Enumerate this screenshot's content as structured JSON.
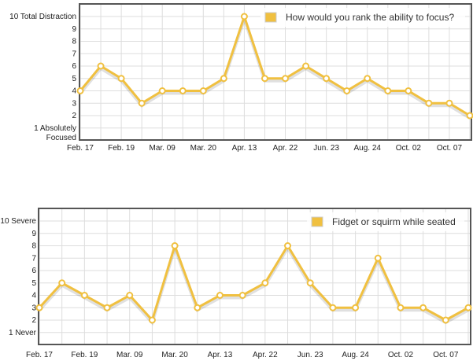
{
  "chart_data": [
    {
      "type": "line",
      "title": "",
      "legend": "How would you rank the ability to focus?",
      "legend_position": "top-right",
      "ytick_labels": {
        "10": "10 Total Distraction",
        "9": "9",
        "8": "8",
        "7": "7",
        "6": "6",
        "5": "5",
        "4": "4",
        "3": "3",
        "2": "2",
        "1": "1 Absolutely Focused"
      },
      "xtick_labels": [
        "Feb. 17",
        "Feb. 19",
        "Mar. 09",
        "Mar. 20",
        "Apr. 13",
        "Apr. 22",
        "Jun. 23",
        "Aug. 24",
        "Oct. 02",
        "Oct. 07"
      ],
      "values": [
        4,
        6,
        5,
        3,
        4,
        4,
        4,
        5,
        10,
        5,
        5,
        6,
        5,
        4,
        5,
        4,
        4,
        3,
        3,
        2
      ],
      "ylim": [
        0,
        11
      ],
      "grid": true,
      "color": "#f0c040"
    },
    {
      "type": "line",
      "title": "",
      "legend": "Fidget or squirm while seated",
      "legend_position": "top-right",
      "ytick_labels": {
        "10": "10 Severe",
        "9": "9",
        "8": "8",
        "7": "7",
        "6": "6",
        "5": "5",
        "4": "4",
        "3": "3",
        "2": "2",
        "1": "1 Never"
      },
      "xtick_labels": [
        "Feb. 17",
        "Feb. 19",
        "Mar. 09",
        "Mar. 20",
        "Apr. 13",
        "Apr. 22",
        "Jun. 23",
        "Aug. 24",
        "Oct. 02",
        "Oct. 07"
      ],
      "values": [
        3,
        5,
        4,
        3,
        4,
        2,
        8,
        3,
        4,
        4,
        5,
        8,
        5,
        3,
        3,
        7,
        3,
        3,
        2,
        3
      ],
      "ylim": [
        0,
        11
      ],
      "grid": true,
      "color": "#f0c040"
    }
  ]
}
